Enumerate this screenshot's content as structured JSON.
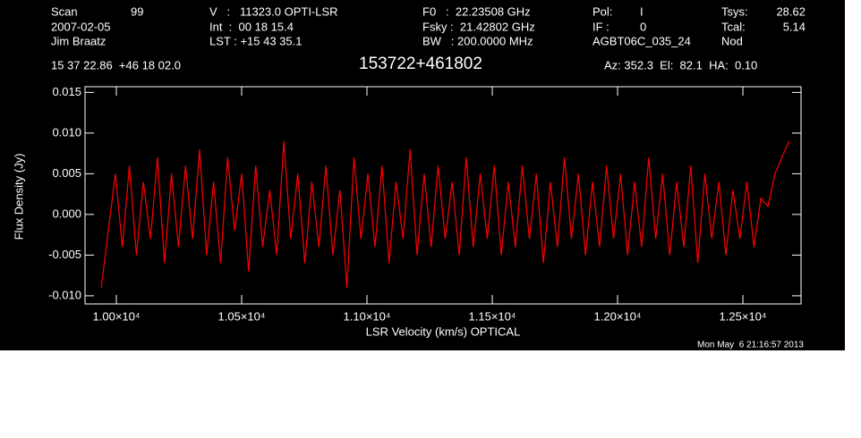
{
  "chart_data": {
    "type": "line",
    "title": "153722+461802",
    "annotations": [
      "Scan",
      "99",
      "2007-02-05",
      "Jim Braatz",
      "V   :   11323.0 OPTI-LSR",
      "Int  :  00 18 15.4",
      "LST : +15 43 35.1",
      "F0   :  22.23508 GHz",
      "Fsky :  21.42802 GHz",
      "BW   : 200.0000 MHz",
      "Pol:",
      "I",
      "IF :",
      "0",
      "AGBT06C_035_24",
      "Tsys:",
      "28.62",
      "Tcal:",
      "5.14",
      "Nod",
      "15 37 22.86  +46 18 02.0",
      "Az: 352.3  El:  82.1  HA:  0.10",
      "Mon May  6 21:16:57 2013"
    ],
    "x_label": "LSR Velocity (km/s) OPTICAL",
    "y_label": "Flux Density (Jy)",
    "xlim": [
      9875,
      12732
    ],
    "ylim": [
      -0.011,
      0.0157
    ],
    "xticks": [
      {
        "value": 10000,
        "label": "1.00×10⁴"
      },
      {
        "value": 10500,
        "label": "1.05×10⁴"
      },
      {
        "value": 11000,
        "label": "1.10×10⁴"
      },
      {
        "value": 11500,
        "label": "1.15×10⁴"
      },
      {
        "value": 12000,
        "label": "1.20×10⁴"
      },
      {
        "value": 12500,
        "label": "1.25×10⁴"
      }
    ],
    "yticks": [
      {
        "value": -0.01,
        "label": "-0.010"
      },
      {
        "value": -0.005,
        "label": "-0.005"
      },
      {
        "value": 0,
        "label": "0.000"
      },
      {
        "value": 0.005,
        "label": "0.005"
      },
      {
        "value": 0.01,
        "label": "0.010"
      },
      {
        "value": 0.015,
        "label": "0.015"
      }
    ],
    "x": [
      9940,
      9968,
      9996,
      10024,
      10052,
      10080,
      10108,
      10136,
      10164,
      10192,
      10220,
      10248,
      10276,
      10304,
      10332,
      10360,
      10388,
      10416,
      10444,
      10472,
      10500,
      10528,
      10556,
      10584,
      10612,
      10640,
      10668,
      10696,
      10724,
      10752,
      10780,
      10808,
      10836,
      10864,
      10892,
      10920,
      10948,
      10976,
      11004,
      11032,
      11060,
      11088,
      11116,
      11144,
      11172,
      11200,
      11228,
      11256,
      11284,
      11312,
      11340,
      11368,
      11396,
      11424,
      11452,
      11480,
      11508,
      11536,
      11564,
      11592,
      11620,
      11648,
      11676,
      11704,
      11732,
      11760,
      11788,
      11816,
      11844,
      11872,
      11900,
      11928,
      11956,
      11984,
      12012,
      12040,
      12068,
      12096,
      12124,
      12152,
      12180,
      12208,
      12236,
      12264,
      12292,
      12320,
      12348,
      12376,
      12404,
      12432,
      12460,
      12488,
      12516,
      12544,
      12572,
      12600,
      12628,
      12656,
      12684
    ],
    "series": [
      {
        "color": "#ff0000",
        "values": [
          -0.009,
          -0.002,
          0.005,
          -0.004,
          0.006,
          -0.005,
          0.004,
          -0.003,
          0.007,
          -0.006,
          0.005,
          -0.004,
          0.006,
          -0.003,
          0.008,
          -0.005,
          0.004,
          -0.006,
          0.007,
          -0.002,
          0.005,
          -0.007,
          0.006,
          -0.004,
          0.003,
          -0.005,
          0.009,
          -0.003,
          0.005,
          -0.006,
          0.004,
          -0.004,
          0.006,
          -0.005,
          0.003,
          -0.009,
          0.007,
          -0.003,
          0.005,
          -0.004,
          0.006,
          -0.006,
          0.004,
          -0.003,
          0.008,
          -0.005,
          0.005,
          -0.004,
          0.006,
          -0.003,
          0.004,
          -0.005,
          0.007,
          -0.004,
          0.005,
          -0.003,
          0.006,
          -0.005,
          0.004,
          -0.004,
          0.006,
          -0.003,
          0.005,
          -0.006,
          0.004,
          -0.004,
          0.007,
          -0.003,
          0.005,
          -0.005,
          0.004,
          -0.004,
          0.006,
          -0.003,
          0.005,
          -0.005,
          0.004,
          -0.004,
          0.007,
          -0.003,
          0.005,
          -0.005,
          0.004,
          -0.004,
          0.006,
          -0.006,
          0.005,
          -0.003,
          0.004,
          -0.005,
          0.003,
          -0.003,
          0.004,
          -0.004,
          0.002,
          0.001,
          0.005,
          0.007,
          0.009
        ]
      }
    ]
  }
}
